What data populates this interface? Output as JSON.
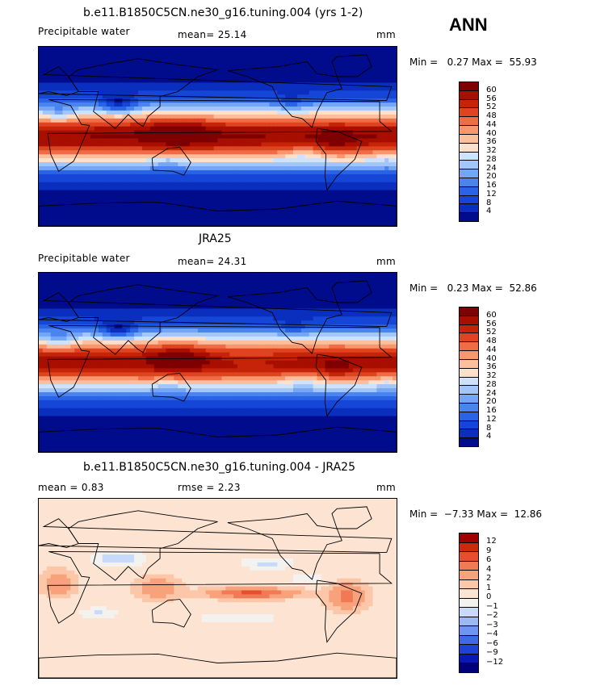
{
  "season": "ANN",
  "colors": {
    "precip": [
      "#000c8c",
      "#0a2fbe",
      "#1546d8",
      "#2a63e6",
      "#4a84ef",
      "#75a6f5",
      "#a3c6fa",
      "#cfe2fd",
      "#f5f2ee",
      "#fde0cc",
      "#fcbf9c",
      "#f7976e",
      "#ef6c46",
      "#e0431f",
      "#c62408",
      "#a80f00",
      "#7f0000"
    ],
    "diff": [
      "#00007a",
      "#0a18b6",
      "#1e42d6",
      "#3e6ae8",
      "#6e95f2",
      "#9bb9f7",
      "#c7dafb",
      "#f3f2ef",
      "#fde4d2",
      "#fcc7a8",
      "#f8a27c",
      "#f07a55",
      "#e44f2e",
      "#cc2a10",
      "#a00000"
    ],
    "land_line": "#000000"
  },
  "panels": [
    {
      "title": "b.e11.B1850C5CN.ne30_g16.tuning.004 (yrs 1-2)",
      "left_label": "Precipitable water",
      "center_label": "mean=  25.14",
      "right_label": "mm",
      "min_max": "Min =   0.27 Max =  55.93",
      "field": "model",
      "levels": [
        "60",
        "56",
        "52",
        "48",
        "44",
        "40",
        "36",
        "32",
        "28",
        "24",
        "20",
        "16",
        "12",
        "8",
        "4"
      ]
    },
    {
      "title": "JRA25",
      "left_label": "Precipitable water",
      "center_label": "mean=  24.31",
      "right_label": "mm",
      "min_max": "Min =   0.23 Max =  52.86",
      "field": "obs",
      "levels": [
        "60",
        "56",
        "52",
        "48",
        "44",
        "40",
        "36",
        "32",
        "28",
        "24",
        "20",
        "16",
        "12",
        "8",
        "4"
      ]
    },
    {
      "title": "b.e11.B1850C5CN.ne30_g16.tuning.004 - JRA25",
      "left_label": "mean =    0.83",
      "center_label": "rmse =    2.23",
      "right_label": "mm",
      "min_max": "Min =  −7.33 Max =  12.86",
      "field": "diff",
      "levels": [
        "12",
        "9",
        "6",
        "4",
        "2",
        "1",
        "0",
        "−1",
        "−2",
        "−3",
        "−4",
        "−6",
        "−9",
        "−12"
      ]
    }
  ]
}
